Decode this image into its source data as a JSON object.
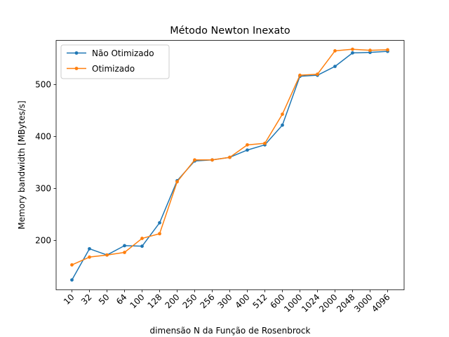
{
  "chart_data": {
    "type": "line",
    "title": "Método Newton Inexato",
    "xlabel": "dimensão N da Função de Rosenbrock",
    "ylabel": "Memory bandwidth [MBytes/s]",
    "categories": [
      "10",
      "32",
      "50",
      "64",
      "100",
      "128",
      "200",
      "250",
      "256",
      "300",
      "400",
      "512",
      "600",
      "1000",
      "1024",
      "2000",
      "2048",
      "3000",
      "4096"
    ],
    "ylim": [
      105,
      585
    ],
    "yticks": [
      200,
      300,
      400,
      500
    ],
    "grid": false,
    "legend_position": "top-left",
    "series": [
      {
        "name": "Não Otimizado",
        "color": "#1f77b4",
        "values": [
          124,
          184,
          172,
          190,
          189,
          234,
          315,
          353,
          355,
          360,
          374,
          384,
          422,
          516,
          518,
          535,
          561,
          562,
          564
        ]
      },
      {
        "name": "Otimizado",
        "color": "#ff7f0e",
        "values": [
          153,
          168,
          172,
          177,
          204,
          213,
          313,
          355,
          355,
          360,
          384,
          387,
          443,
          518,
          520,
          565,
          568,
          566,
          567
        ]
      }
    ]
  }
}
